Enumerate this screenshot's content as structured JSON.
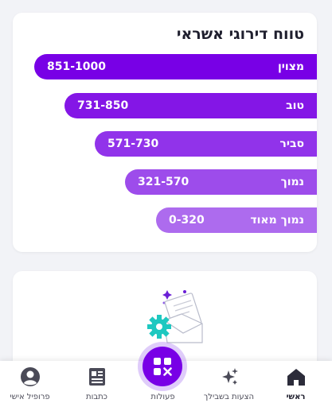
{
  "ranges_card": {
    "title": "טווח דירוגי אשראי",
    "ranges": [
      {
        "label": "מצוין",
        "range": "851-1000"
      },
      {
        "label": "טוב",
        "range": "731-850"
      },
      {
        "label": "סביר",
        "range": "571-730"
      },
      {
        "label": "נמוך",
        "range": "321-570"
      },
      {
        "label": "נמוך מאוד",
        "range": "0-320"
      }
    ]
  },
  "promo_card": {
    "illustration_icon": "envelope-with-gear-icon"
  },
  "bottom_nav": {
    "items": [
      {
        "label": "ראשי",
        "icon": "home-icon"
      },
      {
        "label": "הצעות בשבילך",
        "icon": "sparkles-icon"
      },
      {
        "label": "פעולות",
        "icon": "grid-icon"
      },
      {
        "label": "כתבות",
        "icon": "article-icon"
      },
      {
        "label": "פרופיל אישי",
        "icon": "user-icon"
      }
    ]
  },
  "colors": {
    "accent": "#7800e6",
    "bars": [
      "#7800e6",
      "#8416e6",
      "#9133ea",
      "#9d4ceb",
      "#ad6bee"
    ],
    "gear": "#1ec8c0"
  }
}
